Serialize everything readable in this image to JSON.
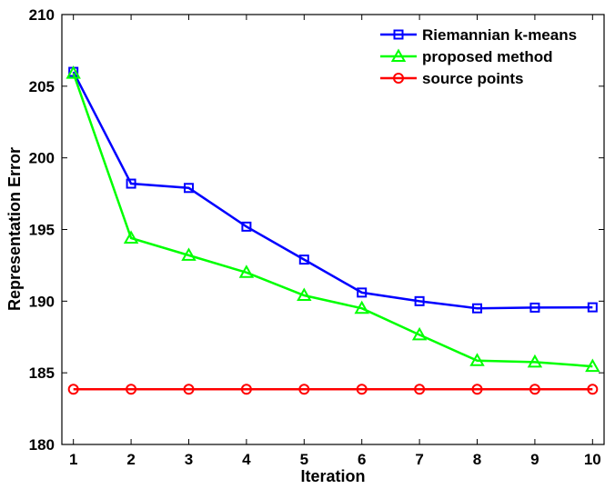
{
  "chart_data": {
    "type": "line",
    "title": "",
    "xlabel": "Iteration",
    "ylabel": "Representation Error",
    "x": [
      1,
      2,
      3,
      4,
      5,
      6,
      7,
      8,
      9,
      10
    ],
    "xlim": [
      0.8,
      10.2
    ],
    "ylim": [
      180,
      210
    ],
    "xticks": [
      "1",
      "2",
      "3",
      "4",
      "5",
      "6",
      "7",
      "8",
      "9",
      "10"
    ],
    "yticks": [
      "180",
      "185",
      "190",
      "195",
      "200",
      "205",
      "210"
    ],
    "grid": false,
    "legend_position": "top-right",
    "series": [
      {
        "name": "Riemannian k-means",
        "color": "#0000ff",
        "marker": "square",
        "values": [
          206.0,
          198.2,
          197.9,
          195.2,
          192.9,
          190.6,
          190.0,
          189.5,
          189.55,
          189.57
        ]
      },
      {
        "name": "proposed method",
        "color": "#00ff00",
        "marker": "triangle",
        "values": [
          205.9,
          194.4,
          193.2,
          192.0,
          190.4,
          189.5,
          187.65,
          185.85,
          185.75,
          185.45
        ]
      },
      {
        "name": "source points",
        "color": "#ff0000",
        "marker": "circle",
        "values": [
          183.85,
          183.85,
          183.85,
          183.85,
          183.85,
          183.85,
          183.85,
          183.85,
          183.85,
          183.85
        ]
      }
    ]
  }
}
